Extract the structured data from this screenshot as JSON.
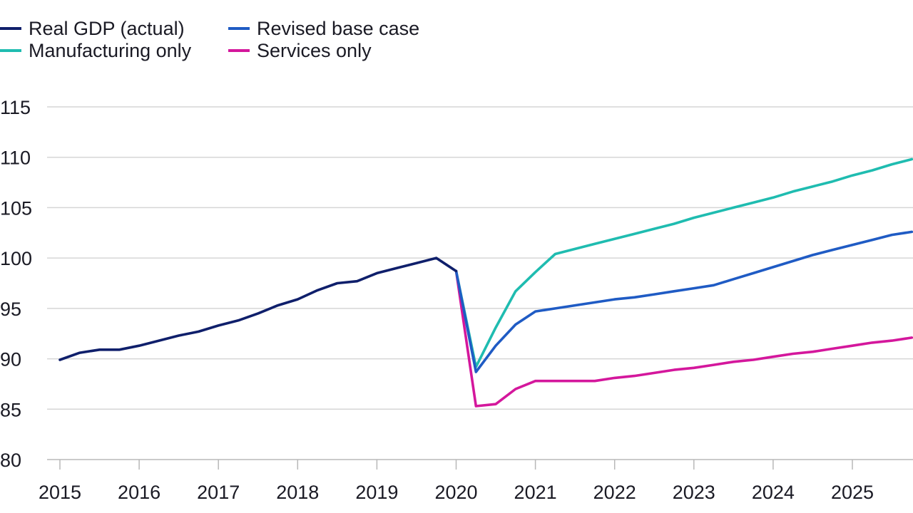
{
  "chart_data": {
    "type": "line",
    "title": "",
    "xlabel": "",
    "ylabel": "",
    "ylim": [
      80,
      115
    ],
    "xlim": [
      2015,
      2025.75
    ],
    "yticks": [
      80,
      85,
      90,
      95,
      100,
      105,
      110,
      115
    ],
    "xtick_labels": [
      "2015",
      "2016",
      "2017",
      "2018",
      "2019",
      "2020",
      "2021",
      "2022",
      "2023",
      "2024",
      "2025"
    ],
    "grid": "horizontal",
    "legend_position": "top-left",
    "series": [
      {
        "name": "Real GDP (actual)",
        "color": "#0f1f6b",
        "x": [
          2015,
          2015.25,
          2015.5,
          2015.75,
          2016,
          2016.25,
          2016.5,
          2016.75,
          2017,
          2017.25,
          2017.5,
          2017.75,
          2018,
          2018.25,
          2018.5,
          2018.75,
          2019,
          2019.25,
          2019.5,
          2019.75,
          2020
        ],
        "y": [
          89.9,
          90.6,
          90.9,
          90.9,
          91.3,
          91.8,
          92.3,
          92.7,
          93.3,
          93.8,
          94.5,
          95.3,
          95.9,
          96.8,
          97.5,
          97.7,
          98.5,
          99.0,
          99.5,
          100.0,
          98.7
        ]
      },
      {
        "name": "Revised base case",
        "color": "#1f5bc4",
        "x": [
          2020,
          2020.25,
          2020.5,
          2020.75,
          2021,
          2021.25,
          2021.5,
          2021.75,
          2022,
          2022.25,
          2022.5,
          2022.75,
          2023,
          2023.25,
          2023.5,
          2023.75,
          2024,
          2024.25,
          2024.5,
          2024.75,
          2025,
          2025.25,
          2025.5,
          2025.75
        ],
        "y": [
          98.7,
          88.7,
          91.3,
          93.4,
          94.7,
          95.0,
          95.3,
          95.6,
          95.9,
          96.1,
          96.4,
          96.7,
          97.0,
          97.3,
          97.9,
          98.5,
          99.1,
          99.7,
          100.3,
          100.8,
          101.3,
          101.8,
          102.3,
          102.6
        ]
      },
      {
        "name": "Manufacturing only",
        "color": "#1fbcb0",
        "x": [
          2020,
          2020.25,
          2020.5,
          2020.75,
          2021,
          2021.25,
          2021.5,
          2021.75,
          2022,
          2022.25,
          2022.5,
          2022.75,
          2023,
          2023.25,
          2023.5,
          2023.75,
          2024,
          2024.25,
          2024.5,
          2024.75,
          2025,
          2025.25,
          2025.5,
          2025.75
        ],
        "y": [
          98.7,
          89.2,
          93.1,
          96.7,
          98.6,
          100.4,
          100.9,
          101.4,
          101.9,
          102.4,
          102.9,
          103.4,
          104.0,
          104.5,
          105.0,
          105.5,
          106.0,
          106.6,
          107.1,
          107.6,
          108.2,
          108.7,
          109.3,
          109.8
        ]
      },
      {
        "name": "Services only",
        "color": "#d4179c",
        "x": [
          2020,
          2020.25,
          2020.5,
          2020.75,
          2021,
          2021.25,
          2021.5,
          2021.75,
          2022,
          2022.25,
          2022.5,
          2022.75,
          2023,
          2023.25,
          2023.5,
          2023.75,
          2024,
          2024.25,
          2024.5,
          2024.75,
          2025,
          2025.25,
          2025.5,
          2025.75
        ],
        "y": [
          98.7,
          85.3,
          85.5,
          87.0,
          87.8,
          87.8,
          87.8,
          87.8,
          88.1,
          88.3,
          88.6,
          88.9,
          89.1,
          89.4,
          89.7,
          89.9,
          90.2,
          90.5,
          90.7,
          91.0,
          91.3,
          91.6,
          91.8,
          92.1
        ]
      }
    ]
  }
}
